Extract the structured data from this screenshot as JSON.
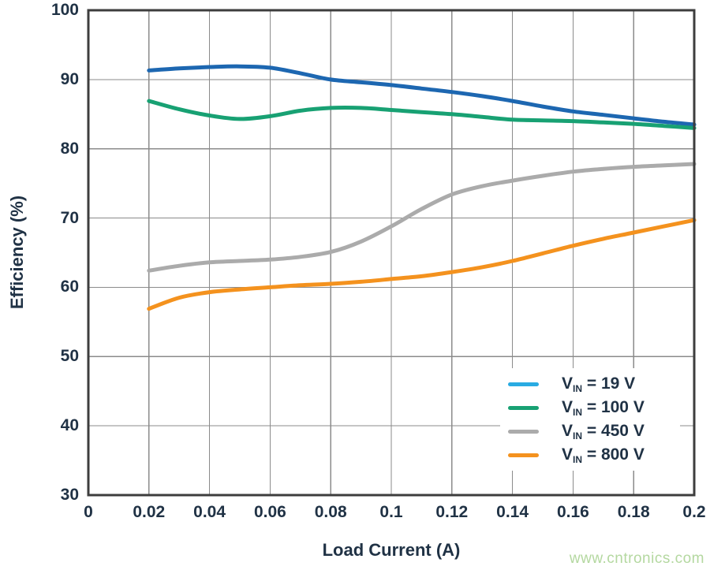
{
  "watermark": {
    "text": "www.cntronics.com",
    "color": "#b4d8a0"
  },
  "colors": {
    "text": "#203245",
    "grid": "#8b8b8b",
    "border": "#3d3d3d",
    "background": "#ffffff"
  },
  "legend": {
    "position": "lower-right",
    "items": [
      {
        "sym": "V",
        "sub": "IN",
        "rest": " = 19 V",
        "slug": "vin-19v"
      },
      {
        "sym": "V",
        "sub": "IN",
        "rest": " = 100 V",
        "slug": "vin-100v"
      },
      {
        "sym": "V",
        "sub": "IN",
        "rest": " = 450 V",
        "slug": "vin-450v"
      },
      {
        "sym": "V",
        "sub": "IN",
        "rest": " = 800 V",
        "slug": "vin-800v"
      }
    ]
  },
  "chart_data": {
    "type": "line",
    "title": "",
    "xlabel": "Load Current (A)",
    "ylabel": "Efficiency (%)",
    "xlim": [
      0,
      0.2
    ],
    "ylim": [
      30,
      100
    ],
    "grid": true,
    "legend_position": "lower-right",
    "x_ticks": [
      0,
      0.02,
      0.04,
      0.06,
      0.08,
      0.1,
      0.12,
      0.14,
      0.16,
      0.18,
      0.2
    ],
    "x_tick_labels": [
      "0",
      "0.02",
      "0.04",
      "0.06",
      "0.08",
      "0.1",
      "0.12",
      "0.14",
      "0.16",
      "0.18",
      "0.2"
    ],
    "y_ticks": [
      30,
      40,
      50,
      60,
      70,
      80,
      90,
      100
    ],
    "y_tick_labels": [
      "30",
      "40",
      "50",
      "60",
      "70",
      "80",
      "90",
      "100"
    ],
    "x": [
      0.02,
      0.03,
      0.04,
      0.05,
      0.06,
      0.07,
      0.08,
      0.09,
      0.1,
      0.11,
      0.12,
      0.13,
      0.14,
      0.15,
      0.16,
      0.17,
      0.18,
      0.19,
      0.2
    ],
    "series": [
      {
        "name": "VIN = 19 V",
        "slug": "vin-19v",
        "color": "#1d67b1",
        "legend_color": "#29abe2",
        "values": [
          91.3,
          91.6,
          91.8,
          91.9,
          91.7,
          90.9,
          90.0,
          89.6,
          89.2,
          88.7,
          88.2,
          87.6,
          86.9,
          86.1,
          85.4,
          84.9,
          84.4,
          83.9,
          83.5
        ]
      },
      {
        "name": "VIN = 100 V",
        "slug": "vin-100v",
        "color": "#18a173",
        "legend_color": "#18a173",
        "values": [
          86.9,
          85.7,
          84.8,
          84.3,
          84.7,
          85.5,
          85.9,
          85.9,
          85.6,
          85.3,
          85.0,
          84.6,
          84.2,
          84.1,
          84.0,
          83.8,
          83.6,
          83.3,
          83.0
        ]
      },
      {
        "name": "VIN = 450 V",
        "slug": "vin-450v",
        "color": "#ababab",
        "legend_color": "#ababab",
        "values": [
          62.4,
          63.1,
          63.6,
          63.8,
          64.0,
          64.4,
          65.1,
          66.6,
          68.8,
          71.3,
          73.4,
          74.6,
          75.4,
          76.1,
          76.7,
          77.1,
          77.4,
          77.6,
          77.8
        ]
      },
      {
        "name": "VIN = 800 V",
        "slug": "vin-800v",
        "color": "#f4921e",
        "legend_color": "#f4921e",
        "values": [
          56.9,
          58.5,
          59.3,
          59.7,
          60.0,
          60.3,
          60.5,
          60.8,
          61.2,
          61.6,
          62.2,
          62.9,
          63.8,
          64.9,
          66.0,
          67.0,
          67.9,
          68.8,
          69.7
        ]
      }
    ]
  }
}
